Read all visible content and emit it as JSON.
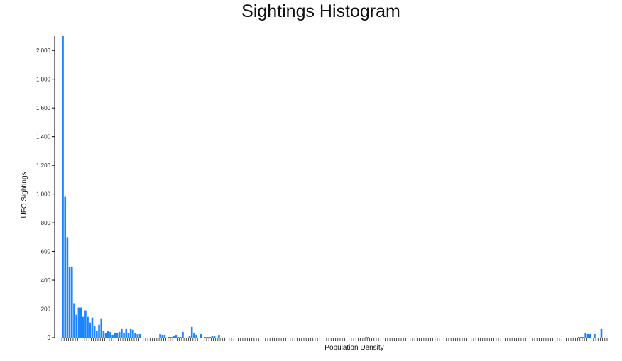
{
  "chart_data": {
    "type": "bar",
    "title": "Sightings Histogram",
    "xlabel": "Population Density",
    "ylabel": "UFO Sightings",
    "ylim": [
      0,
      2100
    ],
    "yticks": [
      0,
      200,
      400,
      600,
      800,
      1000,
      1200,
      1400,
      1600,
      1800,
      2000
    ],
    "ytick_labels": [
      "0",
      "200",
      "400",
      "600",
      "800",
      "1,000",
      "1,200",
      "1,400",
      "1,600",
      "1,800",
      "2,000"
    ],
    "bar_color": "#1a85ff",
    "bin_count": 240,
    "values": [
      2120,
      980,
      700,
      490,
      495,
      240,
      160,
      210,
      210,
      145,
      190,
      145,
      105,
      140,
      80,
      50,
      90,
      130,
      45,
      30,
      45,
      40,
      20,
      30,
      30,
      40,
      60,
      35,
      60,
      30,
      60,
      55,
      30,
      25,
      25,
      0,
      0,
      0,
      0,
      0,
      0,
      0,
      0,
      25,
      20,
      20,
      0,
      5,
      5,
      10,
      20,
      5,
      5,
      40,
      0,
      0,
      10,
      75,
      35,
      20,
      0,
      25,
      0,
      5,
      5,
      5,
      10,
      10,
      0,
      15,
      0,
      0,
      0,
      0,
      0,
      0,
      0,
      0,
      0,
      0,
      0,
      0,
      0,
      0,
      0,
      0,
      0,
      0,
      0,
      0,
      0,
      0,
      0,
      0,
      0,
      0,
      0,
      0,
      0,
      0,
      0,
      0,
      0,
      0,
      0,
      0,
      0,
      0,
      0,
      0,
      0,
      0,
      0,
      0,
      0,
      0,
      0,
      0,
      0,
      0,
      0,
      0,
      0,
      0,
      0,
      0,
      0,
      0,
      0,
      0,
      0,
      0,
      0,
      0,
      5,
      5,
      0,
      0,
      0,
      0,
      0,
      0,
      0,
      0,
      0,
      0,
      0,
      0,
      0,
      0,
      0,
      0,
      0,
      0,
      0,
      0,
      0,
      0,
      0,
      0,
      0,
      0,
      0,
      0,
      0,
      0,
      0,
      0,
      0,
      0,
      0,
      0,
      0,
      0,
      0,
      0,
      0,
      0,
      0,
      0,
      0,
      0,
      0,
      0,
      0,
      0,
      0,
      0,
      0,
      0,
      0,
      0,
      0,
      0,
      0,
      0,
      0,
      0,
      0,
      0,
      0,
      0,
      0,
      0,
      0,
      0,
      0,
      0,
      0,
      0,
      0,
      0,
      0,
      0,
      0,
      0,
      0,
      0,
      0,
      0,
      0,
      0,
      0,
      0,
      0,
      0,
      0,
      0,
      5,
      5,
      5,
      35,
      25,
      25,
      0,
      25,
      0,
      0,
      60,
      0,
      0
    ]
  }
}
